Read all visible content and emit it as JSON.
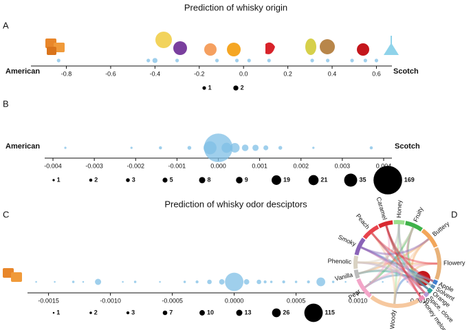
{
  "chart_data": [
    {
      "type": "strip",
      "panel_label": "A",
      "title": "Prediction of whisky origin",
      "left_label": "American",
      "right_label": "Scotch",
      "color": "#7fbfe6",
      "xlim": [
        -0.96,
        0.67
      ],
      "xticks": [
        -0.8,
        -0.6,
        -0.4,
        -0.2,
        {
          "value": 0,
          "label": "0.0"
        },
        0.2,
        0.4,
        0.6
      ],
      "x": [
        -0.835,
        -0.43,
        -0.4,
        -0.3,
        -0.12,
        -0.03,
        0.025,
        0.115,
        0.31,
        0.38,
        0.49,
        0.55,
        0.6
      ],
      "sizes": [
        1,
        1,
        2,
        1,
        1,
        1,
        1,
        1,
        1,
        1,
        1,
        1,
        1
      ],
      "size_legend": [
        1,
        2
      ]
    },
    {
      "type": "strip",
      "panel_label": "B",
      "left_label": "American",
      "right_label": "Scotch",
      "color": "#7fbfe6",
      "xlim": [
        -0.0042,
        0.0042
      ],
      "xticks": [
        -0.004,
        -0.003,
        -0.002,
        -0.001,
        {
          "value": 0,
          "label": "0.000"
        },
        0.001,
        0.002,
        0.003,
        0.004
      ],
      "x": [
        -0.0037,
        -0.0021,
        -0.0014,
        -0.0007,
        -0.0002,
        0.0,
        0.0002,
        0.0004,
        0.00065,
        0.0009,
        0.00115,
        0.0015,
        0.0023,
        0.0037
      ],
      "sizes": [
        1,
        1,
        2,
        3,
        35,
        169,
        21,
        19,
        9,
        8,
        5,
        3,
        1,
        2
      ],
      "size_legend": [
        1,
        2,
        3,
        5,
        8,
        9,
        19,
        21,
        35,
        169
      ]
    },
    {
      "type": "strip",
      "panel_label": "C",
      "title": "Prediction of whisky odor desciptors",
      "color": "#7fbfe6",
      "xlim": [
        -0.00167,
        0.00158
      ],
      "xticks": [
        -0.0015,
        {
          "value": -0.001,
          "label": "-0.0010"
        },
        -0.0005,
        {
          "value": 0,
          "label": "0.0000"
        },
        0.0005,
        {
          "value": 0.001,
          "label": "0.0010"
        },
        0.0015
      ],
      "x": [
        -0.0016,
        -0.00145,
        -0.0013,
        -0.00122,
        -0.0011,
        -0.0009,
        -0.0008,
        -0.0006,
        -0.0004,
        -0.0003,
        -0.0002,
        -0.0001,
        0.0,
        0.0001,
        0.0002,
        0.00025,
        0.0003,
        0.0004,
        0.0005,
        0.0006,
        0.0007,
        0.0008,
        0.0009,
        0.0011,
        0.0012,
        0.0014
      ],
      "sizes": [
        1,
        1,
        2,
        1,
        13,
        1,
        2,
        1,
        2,
        3,
        7,
        10,
        115,
        10,
        7,
        3,
        2,
        3,
        2,
        3,
        26,
        2,
        1,
        1,
        1,
        1
      ],
      "size_legend": [
        1,
        2,
        3,
        7,
        10,
        13,
        26,
        115
      ]
    },
    {
      "type": "chord",
      "panel_label": "D",
      "nodes": [
        "Honey",
        "Fruity",
        "Buttery",
        "Flowery",
        "Apple",
        "Solvent",
        "Orange",
        "Spice, clove",
        "Honey melon",
        "Woody",
        "Pear",
        "Vanilla",
        "Phenolic",
        "Smoky",
        "Peach",
        "Caramel"
      ],
      "weights": [
        15,
        25,
        30,
        45,
        6,
        5,
        6,
        6,
        8,
        70,
        30,
        12,
        18,
        25,
        25,
        20
      ],
      "colors": [
        "#9be08f",
        "#3fb24a",
        "#f2a65a",
        "#e8b27a",
        "#3f7fd0",
        "#5b8fb8",
        "#2ea59b",
        "#b79ad6",
        "#f08bb8",
        "#f6c89f",
        "#f3a5c8",
        "#bdbdbd",
        "#d9d2c2",
        "#8a63b8",
        "#e8434d",
        "#d9292f"
      ]
    }
  ]
}
